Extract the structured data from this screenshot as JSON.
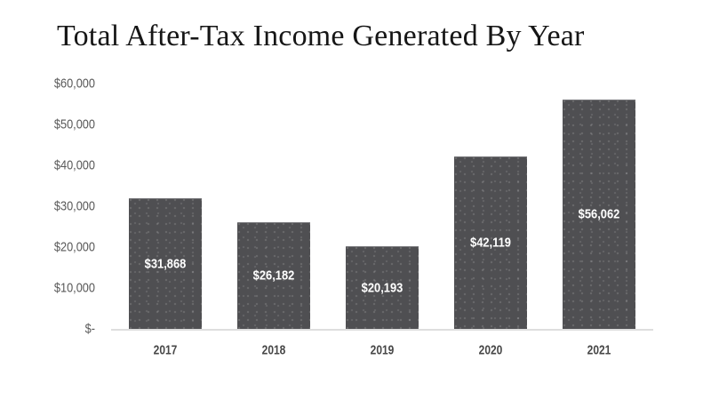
{
  "page": {
    "background": "#ffffff"
  },
  "chart_data": {
    "type": "bar",
    "title": "Total After-Tax Income Generated By Year",
    "categories": [
      "2017",
      "2018",
      "2019",
      "2020",
      "2021"
    ],
    "values": [
      31868,
      26182,
      20193,
      42119,
      56062
    ],
    "bar_labels": [
      "$31,868",
      "$26,182",
      "$20,193",
      "$42,119",
      "$56,062"
    ],
    "xlabel": "",
    "ylabel": "",
    "ylim": [
      0,
      60000
    ],
    "y_ticks": [
      {
        "value": 60000,
        "label": "$60,000"
      },
      {
        "value": 50000,
        "label": "$50,000"
      },
      {
        "value": 40000,
        "label": "$40,000"
      },
      {
        "value": 30000,
        "label": "$30,000"
      },
      {
        "value": 20000,
        "label": "$20,000"
      },
      {
        "value": 10000,
        "label": "$10,000"
      },
      {
        "value": 0,
        "label": "$-"
      }
    ],
    "grid": false,
    "legend": false,
    "bar_label_position": "center",
    "colors": {
      "bar_fill": "#4f4f52",
      "bar_dot": "#66666a",
      "bar_label_text": "#ffffff",
      "axis_line": "#dedede",
      "y_tick_text": "#595959",
      "x_tick_text": "#474747",
      "title_text": "#161616"
    }
  }
}
